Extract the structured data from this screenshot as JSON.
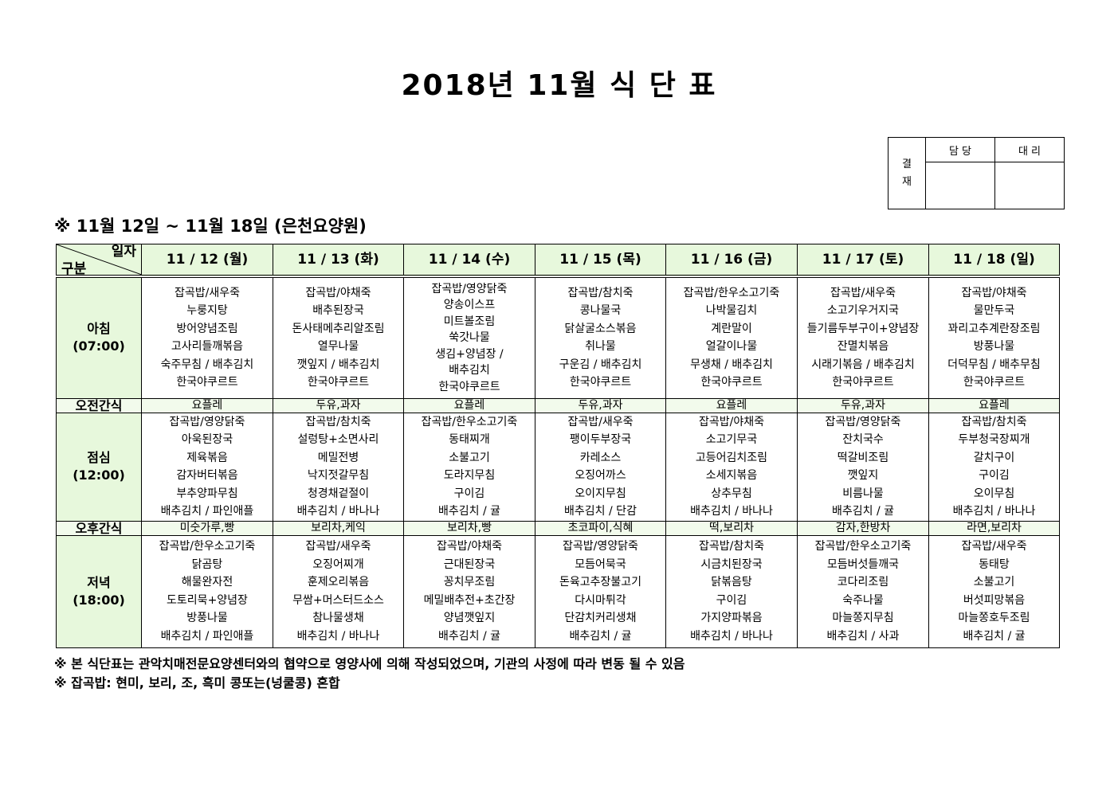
{
  "title": "2018년 11월 식 단 표",
  "approval": {
    "label": "결\n재",
    "label_lines": [
      "결",
      "재"
    ],
    "columns": [
      "담 당",
      "대 리"
    ]
  },
  "period": "※ 11월 12일 ~ 11월 18일 (은천요양원)",
  "table": {
    "corner_top": "일자",
    "corner_bottom": "구분",
    "days": [
      "11 / 12 (월)",
      "11 / 13 (화)",
      "11 / 14 (수)",
      "11 / 15 (목)",
      "11 / 16 (금)",
      "11 / 17 (토)",
      "11 / 18 (일)"
    ],
    "rows": [
      {
        "label": "아침",
        "time": "(07:00)",
        "type": "meal",
        "cells": [
          [
            "잡곡밥/새우죽",
            "누룽지탕",
            "방어양념조림",
            "고사리들깨볶음",
            "숙주무침 / 배추김치",
            "한국야쿠르트"
          ],
          [
            "잡곡밥/야채죽",
            "배추된장국",
            "돈사태메추리알조림",
            "열무나물",
            "깻잎지 / 배추김치",
            "한국야쿠르트"
          ],
          [
            "잡곡밥/영양닭죽",
            "양송이스프",
            "미트볼조림",
            "쑥갓나물",
            "생김+양념장 /",
            "배추김치",
            "한국야쿠르트"
          ],
          [
            "잡곡밥/참치죽",
            "콩나물국",
            "닭살굴소스볶음",
            "취나물",
            "구운김 / 배추김치",
            "한국야쿠르트"
          ],
          [
            "잡곡밥/한우소고기죽",
            "나박물김치",
            "계란말이",
            "얼갈이나물",
            "무생채 / 배추김치",
            "한국야쿠르트"
          ],
          [
            "잡곡밥/새우죽",
            "소고기우거지국",
            "들기름두부구이+양념장",
            "잔멸치볶음",
            "시래기볶음 / 배추김치",
            "한국야쿠르트"
          ],
          [
            "잡곡밥/야채죽",
            "물만두국",
            "꽈리고추계란장조림",
            "방풍나물",
            "더덕무침 / 배추무침",
            "한국야쿠르트"
          ]
        ]
      },
      {
        "label": "오전간식",
        "type": "snack",
        "cells": [
          "요플레",
          "두유,과자",
          "요플레",
          "두유,과자",
          "요플레",
          "두유,과자",
          "요플레"
        ]
      },
      {
        "label": "점심",
        "time": "(12:00)",
        "type": "meal",
        "cells": [
          [
            "잡곡밥/영양닭죽",
            "아욱된장국",
            "제육볶음",
            "감자버터볶음",
            "부추양파무침",
            "배추김치 / 파인애플"
          ],
          [
            "잡곡밥/참치죽",
            "설렁탕+소면사리",
            "메밀전병",
            "낙지젓갈무침",
            "청경채겉절이",
            "배추김치 / 바나나"
          ],
          [
            "잡곡밥/한우소고기죽",
            "동태찌개",
            "소불고기",
            "도라지무침",
            "구이김",
            "배추김치 / 귤"
          ],
          [
            "잡곡밥/새우죽",
            "팽이두부장국",
            "카레소스",
            "오징어까스",
            "오이지무침",
            "배추김치 / 단감"
          ],
          [
            "잡곡밥/야채죽",
            "소고기무국",
            "고등어김치조림",
            "소세지볶음",
            "상추무침",
            "배추김치 / 바나나"
          ],
          [
            "잡곡밥/영양닭죽",
            "잔치국수",
            "떡갈비조림",
            "깻잎지",
            "비름나물",
            "배추김치 / 귤"
          ],
          [
            "잡곡밥/참치죽",
            "두부청국장찌개",
            "갈치구이",
            "구이김",
            "오이무침",
            "배추김치 / 바나나"
          ]
        ]
      },
      {
        "label": "오후간식",
        "type": "snack",
        "cells": [
          "미숫가루,빵",
          "보리차,케익",
          "보리차,빵",
          "초코파이,식혜",
          "떡,보리차",
          "감자,한방차",
          "라면,보리차"
        ]
      },
      {
        "label": "저녁",
        "time": "(18:00)",
        "type": "meal",
        "cells": [
          [
            "잡곡밥/한우소고기죽",
            "닭곰탕",
            "해물완자전",
            "도토리묵+양념장",
            "방풍나물",
            "배추김치 / 파인애플"
          ],
          [
            "잡곡밥/새우죽",
            "오징어찌개",
            "훈제오리볶음",
            "무쌈+머스터드소스",
            "참나물생채",
            "배추김치 / 바나나"
          ],
          [
            "잡곡밥/야채죽",
            "근대된장국",
            "꽁치무조림",
            "메밀배추전+초간장",
            "양념깻잎지",
            "배추김치 / 귤"
          ],
          [
            "잡곡밥/영양닭죽",
            "모듬어묵국",
            "돈육고추장불고기",
            "다시마튀각",
            "단감치커리생채",
            "배추김치 / 귤"
          ],
          [
            "잡곡밥/참치죽",
            "시금치된장국",
            "닭볶음탕",
            "구이김",
            "가지양파볶음",
            "배추김치 / 바나나"
          ],
          [
            "잡곡밥/한우소고기죽",
            "모듬버섯들깨국",
            "코다리조림",
            "숙주나물",
            "마늘쫑지무침",
            "배추김치 / 사과"
          ],
          [
            "잡곡밥/새우죽",
            "동태탕",
            "소불고기",
            "버섯피망볶음",
            "마늘쫑호두조림",
            "배추김치 / 귤"
          ]
        ]
      }
    ]
  },
  "notes": [
    "※ 본 식단표는 관악치매전문요양센터와의 협약으로 영양사에 의해 작성되었으며, 기관의 사정에 따라 변동 될 수 있음",
    "※ 잡곡밥: 현미, 보리, 조, 흑미 콩또는(넝쿨콩) 혼합"
  ],
  "colors": {
    "header_bg": "#e7f8dc",
    "snack_bg": "#f2fbec"
  }
}
